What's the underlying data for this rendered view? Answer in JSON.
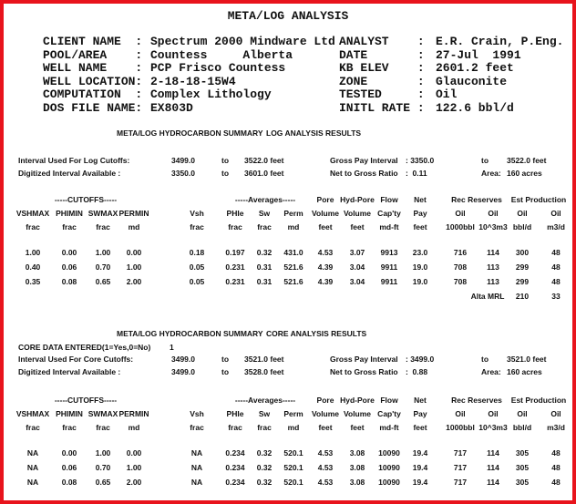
{
  "title": "META/LOG ANALYSIS",
  "header": {
    "rows": [
      {
        "label": "CLIENT NAME  :",
        "value": "Spectrum 2000 Mindware Ltd",
        "label2": "ANALYST    :",
        "value2": "E.R. Crain, P.Eng."
      },
      {
        "label": "POOL/AREA    :",
        "value": "Countess     Alberta",
        "label2": "DATE       :",
        "value2": "27-Jul  1991"
      },
      {
        "label": "WELL NAME    :",
        "value": "PCP Frisco Countess",
        "label2": "KB ELEV    :",
        "value2": "2601.2 feet"
      },
      {
        "label": "WELL LOCATION:",
        "value": "2-18-18-15W4",
        "label2": "ZONE       :",
        "value2": "Glauconite"
      },
      {
        "label": "COMPUTATION  :",
        "value": "Complex Lithology",
        "label2": "TESTED     :",
        "value2": "Oil"
      },
      {
        "label": "DOS FILE NAME:",
        "value": "EX803D",
        "label2": "INITL RATE :",
        "value2": "122.6 bbl/d"
      }
    ]
  },
  "sections": [
    {
      "heading": [
        "META/LOG HYDROCARBON SUMMARY",
        "LOG ANALYSIS RESULTS"
      ],
      "intervals": [
        [
          "Interval Used For Log Cutoffs:",
          "3499.0",
          "to",
          "3522.0 feet",
          "Gross Pay Interval",
          ": 3350.0",
          "to",
          "3522.0 feet"
        ],
        [
          "Digitized Interval Available :",
          "3350.0",
          "to",
          "3601.0 feet",
          "Net to Gross Ratio",
          ":  0.11",
          "Area:",
          "160 acres"
        ]
      ],
      "groups": [
        "-----CUTOFFS-----",
        "-----Averages-----"
      ],
      "top_labels": [
        "Pore",
        "Hyd-Pore",
        "Flow",
        "Net",
        "Rec Reserves",
        "Est Production"
      ],
      "labels": [
        "VSHMAX",
        "PHIMIN",
        "SWMAX",
        "PERMIN",
        "Vsh",
        "PHIe",
        "Sw",
        "Perm",
        "Volume",
        "Volume",
        "Cap'ty",
        "Pay",
        "Oil",
        "Oil",
        "Oil",
        "Oil"
      ],
      "units": [
        "frac",
        "frac",
        "frac",
        "md",
        "frac",
        "frac",
        "frac",
        "md",
        "feet",
        "feet",
        "md-ft",
        "feet",
        "1000bbl",
        "10^3m3",
        "bbl/d",
        "m3/d"
      ],
      "rows": [
        [
          "1.00",
          "0.00",
          "1.00",
          "0.00",
          "0.18",
          "0.197",
          "0.32",
          "431.0",
          "4.53",
          "3.07",
          "9913",
          "23.0",
          "716",
          "114",
          "300",
          "48"
        ],
        [
          "0.40",
          "0.06",
          "0.70",
          "1.00",
          "0.05",
          "0.231",
          "0.31",
          "521.6",
          "4.39",
          "3.04",
          "9911",
          "19.0",
          "708",
          "113",
          "299",
          "48"
        ],
        [
          "0.35",
          "0.08",
          "0.65",
          "2.00",
          "0.05",
          "0.231",
          "0.31",
          "521.6",
          "4.39",
          "3.04",
          "9911",
          "19.0",
          "708",
          "113",
          "299",
          "48"
        ]
      ],
      "note": [
        "Alta MRL",
        "210",
        "33"
      ]
    },
    {
      "heading": [
        "META/LOG HYDROCARBON SUMMARY",
        "CORE ANALYSIS RESULTS"
      ],
      "entered": [
        "CORE DATA ENTERED(1=Yes,0=No)",
        "1"
      ],
      "intervals": [
        [
          "Interval Used For Core Cutoffs:",
          "3499.0",
          "to",
          "3521.0 feet",
          "Gross Pay Interval",
          ": 3499.0",
          "to",
          "3521.0 feet"
        ],
        [
          "Digitized Interval Available :",
          "3499.0",
          "to",
          "3528.0 feet",
          "Net to Gross Ratio",
          ":  0.88",
          "Area:",
          "160 acres"
        ]
      ],
      "groups": [
        "-----CUTOFFS-----",
        "-----Averages-----"
      ],
      "top_labels": [
        "Pore",
        "Hyd-Pore",
        "Flow",
        "Net",
        "Rec Reserves",
        "Est Production"
      ],
      "labels": [
        "VSHMAX",
        "PHIMIN",
        "SWMAX",
        "PERMIN",
        "Vsh",
        "PHIe",
        "Sw",
        "Perm",
        "Volume",
        "Volume",
        "Cap'ty",
        "Pay",
        "Oil",
        "Oil",
        "Oil",
        "Oil"
      ],
      "units": [
        "frac",
        "frac",
        "frac",
        "md",
        "frac",
        "frac",
        "frac",
        "md",
        "feet",
        "feet",
        "md-ft",
        "feet",
        "1000bbl",
        "10^3m3",
        "bbl/d",
        "m3/d"
      ],
      "rows": [
        [
          "NA",
          "0.00",
          "1.00",
          "0.00",
          "NA",
          "0.234",
          "0.32",
          "520.1",
          "4.53",
          "3.08",
          "10090",
          "19.4",
          "717",
          "114",
          "305",
          "48"
        ],
        [
          "NA",
          "0.06",
          "0.70",
          "1.00",
          "NA",
          "0.234",
          "0.32",
          "520.1",
          "4.53",
          "3.08",
          "10090",
          "19.4",
          "717",
          "114",
          "305",
          "48"
        ],
        [
          "NA",
          "0.08",
          "0.65",
          "2.00",
          "NA",
          "0.234",
          "0.32",
          "520.1",
          "4.53",
          "3.08",
          "10090",
          "19.4",
          "717",
          "114",
          "305",
          "48"
        ]
      ]
    }
  ]
}
